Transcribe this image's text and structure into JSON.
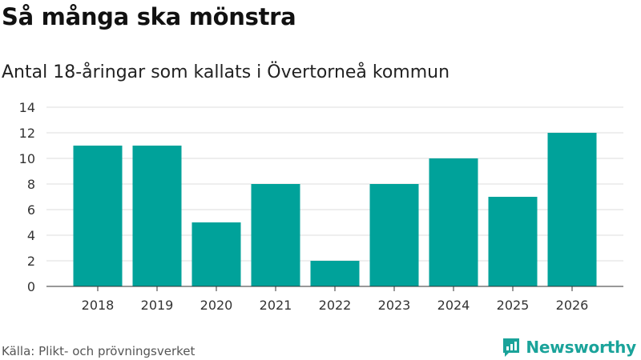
{
  "title": "Så många ska mönstra",
  "subtitle": "Antal 18-åringar som kallats i Övertorneå kommun",
  "source": "Källa: Plikt- och prövningsverket",
  "brand": {
    "name": "Newsworthy",
    "icon": "newsworthy-logo-icon",
    "color": "#1aa39a"
  },
  "colors": {
    "bar": "#00a29a",
    "grid": "#dddddd",
    "axis": "#333333",
    "text": "#333333"
  },
  "chart_data": {
    "type": "bar",
    "title": "Så många ska mönstra",
    "subtitle": "Antal 18-åringar som kallats i Övertorneå kommun",
    "xlabel": "",
    "ylabel": "",
    "categories": [
      "2018",
      "2019",
      "2020",
      "2021",
      "2022",
      "2023",
      "2024",
      "2025",
      "2026"
    ],
    "values": [
      11,
      11,
      5,
      8,
      2,
      8,
      10,
      7,
      12
    ],
    "ylim": [
      0,
      14
    ],
    "yticks": [
      0,
      2,
      4,
      6,
      8,
      10,
      12,
      14
    ],
    "grid": true,
    "legend": "none"
  }
}
